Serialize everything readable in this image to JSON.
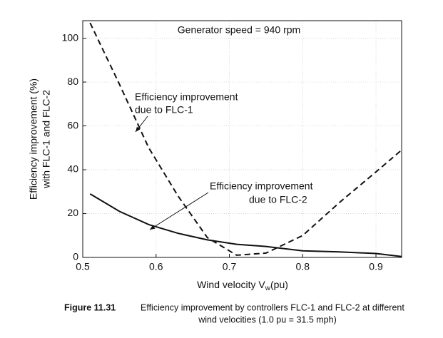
{
  "chart_data": {
    "type": "line",
    "annotations": [
      "Generator speed = 940 rpm",
      "Efficiency improvement",
      "due to FLC-1",
      "Efficiency improvement",
      "due to FLC-2"
    ],
    "ylabel": [
      "Efficiency improvement (%)",
      "with FLC-1 and FLC-2"
    ],
    "xlabel": {
      "text": "Wind velocity V",
      "subscript": "w",
      "unit": "(pu)"
    },
    "caption": {
      "label": "Figure 11.31",
      "lines": [
        "Efficiency improvement by controllers FLC-1 and FLC-2 at different",
        "wind velocities (1.0 pu = 31.5 mph)"
      ]
    },
    "x": [
      0.51,
      0.55,
      0.59,
      0.63,
      0.67,
      0.71,
      0.75,
      0.8,
      0.85,
      0.9,
      0.935
    ],
    "series": [
      {
        "color": "#111111",
        "dash": true,
        "values": [
          107,
          79,
          50,
          28,
          9,
          1,
          2,
          10,
          25,
          39,
          49
        ]
      },
      {
        "color": "#111111",
        "dash": false,
        "values": [
          29,
          21,
          15,
          11,
          8,
          6,
          5,
          3,
          2.5,
          1.8,
          0.4
        ]
      }
    ],
    "xlim": [
      0.5,
      0.935
    ],
    "ylim": [
      0,
      108
    ],
    "xticks": [
      0.5,
      0.6,
      0.7,
      0.8,
      0.9
    ],
    "yticks": [
      0,
      20,
      40,
      60,
      80,
      100
    ],
    "grid": true
  }
}
